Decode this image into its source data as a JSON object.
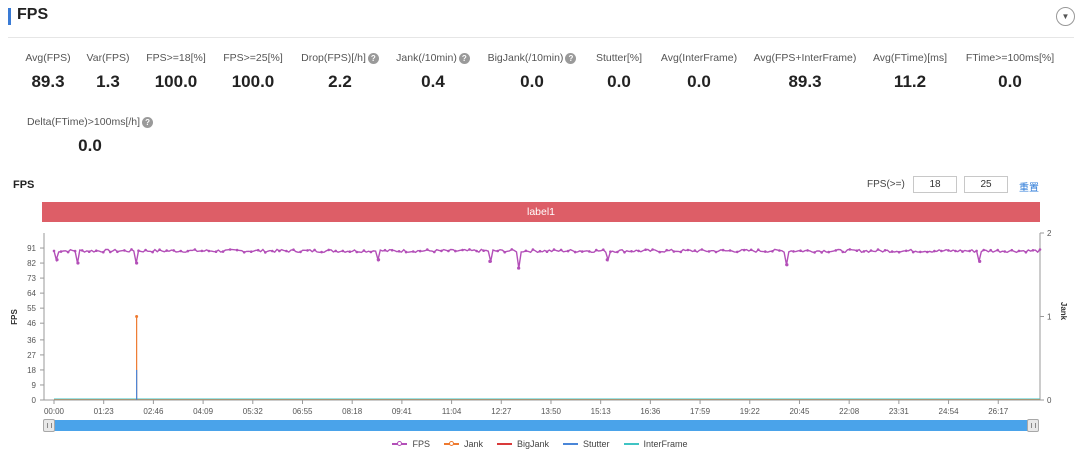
{
  "header": {
    "title": "FPS"
  },
  "metrics": [
    {
      "label": "Avg(FPS)",
      "value": "89.3",
      "help": false
    },
    {
      "label": "Var(FPS)",
      "value": "1.3",
      "help": false
    },
    {
      "label": "FPS>=18[%]",
      "value": "100.0",
      "help": false
    },
    {
      "label": "FPS>=25[%]",
      "value": "100.0",
      "help": false
    },
    {
      "label": "Drop(FPS)[/h]",
      "value": "2.2",
      "help": true
    },
    {
      "label": "Jank(/10min)",
      "value": "0.4",
      "help": true
    },
    {
      "label": "BigJank(/10min)",
      "value": "0.0",
      "help": true
    },
    {
      "label": "Stutter[%]",
      "value": "0.0",
      "help": false
    },
    {
      "label": "Avg(InterFrame)",
      "value": "0.0",
      "help": false
    },
    {
      "label": "Avg(FPS+InterFrame)",
      "value": "89.3",
      "help": false
    },
    {
      "label": "Avg(FTime)[ms]",
      "value": "11.2",
      "help": false
    },
    {
      "label": "FTime>=100ms[%]",
      "value": "0.0",
      "help": false
    },
    {
      "label": "Delta(FTime)>100ms[/h]",
      "value": "0.0",
      "help": true
    }
  ],
  "chart_section": {
    "title": "FPS",
    "threshold_label": "FPS(>=)",
    "threshold_1": "18",
    "threshold_2": "25",
    "reset_label": "重置",
    "band_label": "label1"
  },
  "colors": {
    "fps": "#b34fb8",
    "jank": "#ee7a30",
    "bigjank": "#d93a3a",
    "stutter": "#4a86d8",
    "interframe": "#3fc4c4",
    "band": "#dd5e67",
    "slider": "#4aa3ea"
  },
  "chart_data": {
    "type": "line",
    "x_ticks": [
      "00:00",
      "01:23",
      "02:46",
      "04:09",
      "05:32",
      "06:55",
      "08:18",
      "09:41",
      "11:04",
      "12:27",
      "13:50",
      "15:13",
      "16:36",
      "17:59",
      "19:22",
      "20:45",
      "22:08",
      "23:31",
      "24:54",
      "26:17"
    ],
    "ylabel": "FPS",
    "y_ticks": [
      0,
      9,
      18,
      27,
      36,
      46,
      55,
      64,
      73,
      82,
      91
    ],
    "ylim": [
      0,
      100
    ],
    "y2label": "Jank",
    "y2_ticks": [
      0,
      1,
      2
    ],
    "y2lim": [
      0,
      2
    ],
    "fps_baseline": 89.3,
    "fps_dips": [
      {
        "t": "00:05",
        "value": 84
      },
      {
        "t": "00:40",
        "value": 82
      },
      {
        "t": "02:18",
        "value": 82
      },
      {
        "t": "09:02",
        "value": 84
      },
      {
        "t": "12:08",
        "value": 83
      },
      {
        "t": "12:56",
        "value": 79
      },
      {
        "t": "15:24",
        "value": 84
      },
      {
        "t": "20:24",
        "value": 81
      },
      {
        "t": "25:46",
        "value": 83
      }
    ],
    "series": [
      {
        "name": "FPS",
        "axis": "left"
      },
      {
        "name": "Jank",
        "axis": "right",
        "events": [
          {
            "t": "02:18",
            "value": 1
          }
        ]
      },
      {
        "name": "BigJank",
        "axis": "right",
        "events": []
      },
      {
        "name": "Stutter",
        "axis": "left",
        "events": [
          {
            "t": "02:18",
            "value": 18
          }
        ]
      },
      {
        "name": "InterFrame",
        "axis": "left",
        "events": []
      }
    ],
    "legend_position": "bottom"
  },
  "legend": [
    "FPS",
    "Jank",
    "BigJank",
    "Stutter",
    "InterFrame"
  ]
}
